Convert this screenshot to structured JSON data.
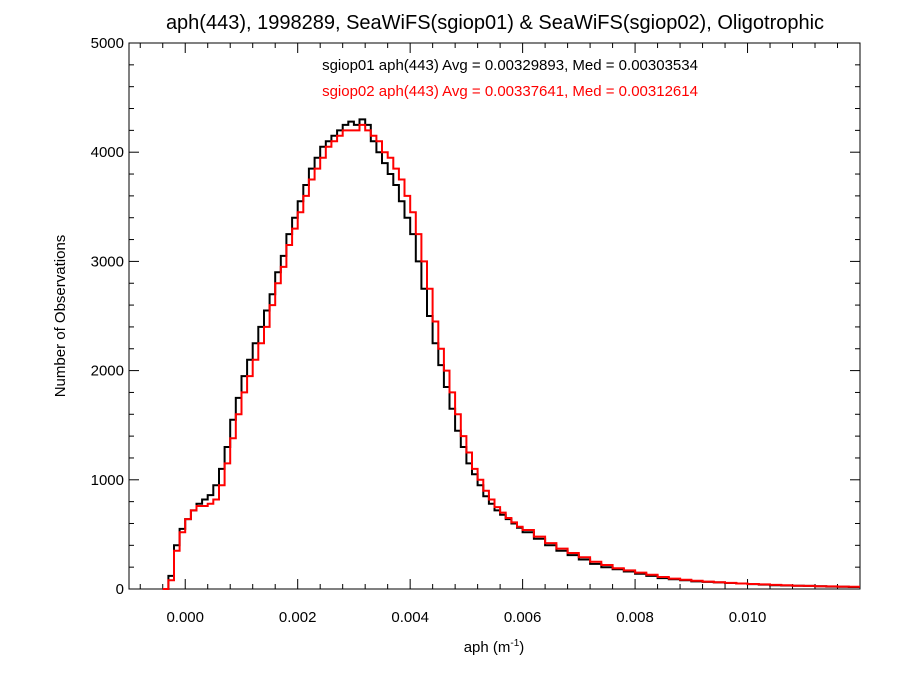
{
  "chart_data": {
    "type": "line",
    "title": "aph(443), 1998289, SeaWiFS(sgiop01) & SeaWiFS(sgiop02), Oligotrophic",
    "xlabel": "aph (m",
    "xlabel_sup": "-1",
    "xlabel_close": ")",
    "ylabel": "Number of Observations",
    "xlim": [
      -0.001,
      0.012
    ],
    "ylim": [
      0,
      5000
    ],
    "x_ticks": [
      0.0,
      0.002,
      0.004,
      0.006,
      0.008,
      0.01
    ],
    "x_tick_labels": [
      "0.000",
      "0.002",
      "0.004",
      "0.006",
      "0.008",
      "0.010"
    ],
    "y_ticks": [
      0,
      1000,
      2000,
      3000,
      4000,
      5000
    ],
    "y_tick_labels": [
      "0",
      "1000",
      "2000",
      "3000",
      "4000",
      "5000"
    ],
    "grid": false,
    "annotations": [
      {
        "text": "sgiop01 aph(443) Avg = 0.00329893, Med = 0.00303534",
        "color": "#000000"
      },
      {
        "text": "sgiop02 aph(443) Avg = 0.00337641, Med = 0.00312614",
        "color": "#ff0000"
      }
    ],
    "series": [
      {
        "color": "#000000",
        "x": [
          -0.0004,
          -0.0003,
          -0.0002,
          -0.0001,
          0.0,
          0.0001,
          0.0002,
          0.0003,
          0.0004,
          0.0005,
          0.0006,
          0.0007,
          0.0008,
          0.0009,
          0.001,
          0.0011,
          0.0012,
          0.0013,
          0.0014,
          0.0015,
          0.0016,
          0.0017,
          0.0018,
          0.0019,
          0.002,
          0.0021,
          0.0022,
          0.0023,
          0.0024,
          0.0025,
          0.0026,
          0.0027,
          0.0028,
          0.0029,
          0.003,
          0.0031,
          0.0032,
          0.0033,
          0.0034,
          0.0035,
          0.0036,
          0.0037,
          0.0038,
          0.0039,
          0.004,
          0.0041,
          0.0042,
          0.0043,
          0.0044,
          0.0045,
          0.0046,
          0.0047,
          0.0048,
          0.0049,
          0.005,
          0.0051,
          0.0052,
          0.0053,
          0.0054,
          0.0055,
          0.0056,
          0.0057,
          0.0058,
          0.0059,
          0.006,
          0.0062,
          0.0064,
          0.0066,
          0.0068,
          0.007,
          0.0072,
          0.0074,
          0.0076,
          0.0078,
          0.008,
          0.0082,
          0.0084,
          0.0086,
          0.0088,
          0.009,
          0.0092,
          0.0094,
          0.0096,
          0.0098,
          0.01,
          0.0102,
          0.0104,
          0.0106,
          0.0108,
          0.011,
          0.0112,
          0.0114,
          0.0116,
          0.0118
        ],
        "y": [
          0,
          120,
          400,
          550,
          640,
          720,
          780,
          820,
          860,
          950,
          1100,
          1300,
          1550,
          1750,
          1950,
          2100,
          2250,
          2400,
          2550,
          2700,
          2900,
          3050,
          3250,
          3400,
          3550,
          3700,
          3850,
          3950,
          4050,
          4100,
          4150,
          4200,
          4250,
          4280,
          4250,
          4300,
          4250,
          4100,
          4000,
          3900,
          3800,
          3700,
          3550,
          3400,
          3250,
          3000,
          2750,
          2500,
          2250,
          2050,
          1850,
          1650,
          1450,
          1300,
          1150,
          1050,
          950,
          850,
          780,
          720,
          680,
          640,
          600,
          560,
          520,
          460,
          400,
          350,
          310,
          270,
          230,
          200,
          180,
          160,
          140,
          120,
          100,
          90,
          80,
          70,
          65,
          60,
          55,
          50,
          45,
          40,
          35,
          32,
          30,
          28,
          25,
          22,
          20,
          18
        ]
      },
      {
        "color": "#ff0000",
        "x": [
          -0.0004,
          -0.0003,
          -0.0002,
          -0.0001,
          0.0,
          0.0001,
          0.0002,
          0.0003,
          0.0004,
          0.0005,
          0.0006,
          0.0007,
          0.0008,
          0.0009,
          0.001,
          0.0011,
          0.0012,
          0.0013,
          0.0014,
          0.0015,
          0.0016,
          0.0017,
          0.0018,
          0.0019,
          0.002,
          0.0021,
          0.0022,
          0.0023,
          0.0024,
          0.0025,
          0.0026,
          0.0027,
          0.0028,
          0.0029,
          0.003,
          0.0031,
          0.0032,
          0.0033,
          0.0034,
          0.0035,
          0.0036,
          0.0037,
          0.0038,
          0.0039,
          0.004,
          0.0041,
          0.0042,
          0.0043,
          0.0044,
          0.0045,
          0.0046,
          0.0047,
          0.0048,
          0.0049,
          0.005,
          0.0051,
          0.0052,
          0.0053,
          0.0054,
          0.0055,
          0.0056,
          0.0057,
          0.0058,
          0.0059,
          0.006,
          0.0062,
          0.0064,
          0.0066,
          0.0068,
          0.007,
          0.0072,
          0.0074,
          0.0076,
          0.0078,
          0.008,
          0.0082,
          0.0084,
          0.0086,
          0.0088,
          0.009,
          0.0092,
          0.0094,
          0.0096,
          0.0098,
          0.01,
          0.0102,
          0.0104,
          0.0106,
          0.0108,
          0.011,
          0.0112,
          0.0114,
          0.0116,
          0.0118
        ],
        "y": [
          0,
          80,
          350,
          520,
          640,
          720,
          760,
          760,
          780,
          820,
          950,
          1150,
          1380,
          1600,
          1800,
          1950,
          2100,
          2250,
          2400,
          2600,
          2800,
          2950,
          3150,
          3300,
          3450,
          3600,
          3750,
          3850,
          3950,
          4050,
          4100,
          4150,
          4200,
          4200,
          4200,
          4250,
          4200,
          4150,
          4100,
          4000,
          3950,
          3850,
          3750,
          3600,
          3450,
          3250,
          3000,
          2750,
          2450,
          2200,
          2000,
          1800,
          1600,
          1400,
          1250,
          1100,
          1000,
          900,
          820,
          750,
          700,
          650,
          610,
          570,
          540,
          480,
          420,
          370,
          330,
          290,
          250,
          220,
          190,
          170,
          150,
          130,
          110,
          95,
          85,
          75,
          68,
          62,
          56,
          50,
          46,
          42,
          38,
          34,
          30,
          28,
          26,
          24,
          22,
          20
        ]
      }
    ]
  }
}
